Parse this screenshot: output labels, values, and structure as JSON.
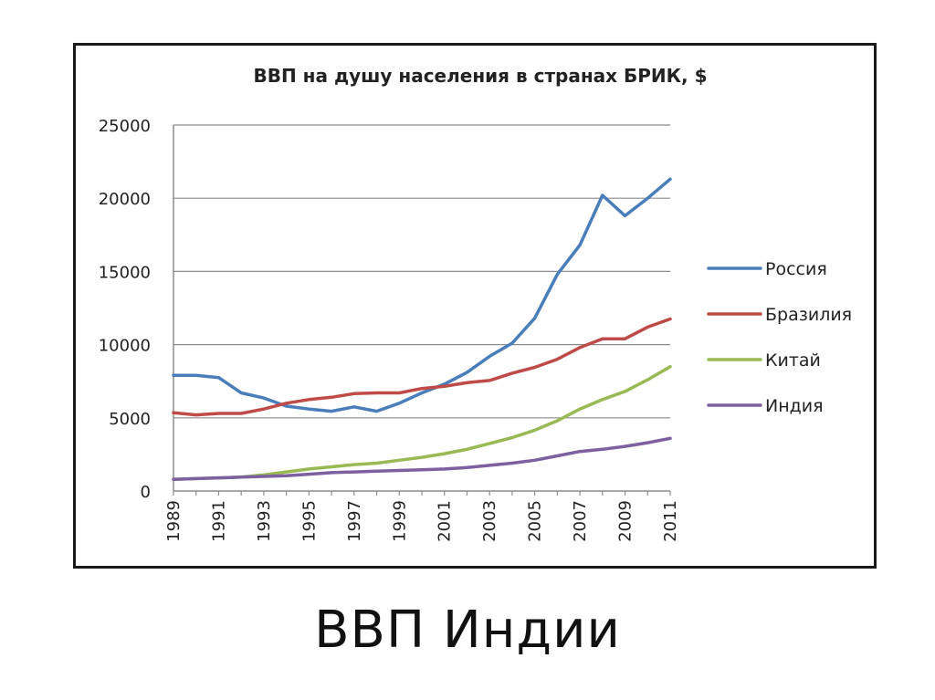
{
  "slide": {
    "caption": "ВВП Индии"
  },
  "chart_data": {
    "type": "line",
    "title": "ВВП на душу населения в странах БРИК, $",
    "xlabel": "",
    "ylabel": "",
    "ylim": [
      0,
      25000
    ],
    "yticks": [
      0,
      5000,
      10000,
      15000,
      20000,
      25000
    ],
    "grid": true,
    "legend_position": "right",
    "x": [
      1989,
      1990,
      1991,
      1992,
      1993,
      1994,
      1995,
      1996,
      1997,
      1998,
      1999,
      2000,
      2001,
      2002,
      2003,
      2004,
      2005,
      2006,
      2007,
      2008,
      2009,
      2010,
      2011
    ],
    "xtick_labels": [
      "1989",
      "1991",
      "1993",
      "1995",
      "1997",
      "1999",
      "2001",
      "2003",
      "2005",
      "2007",
      "2009",
      "2011"
    ],
    "series": [
      {
        "name": "Россия",
        "color": "#4a7ebb",
        "values": [
          7900,
          7900,
          7750,
          6700,
          6350,
          5800,
          5600,
          5450,
          5750,
          5450,
          6000,
          6700,
          7300,
          8100,
          9200,
          10100,
          11800,
          14800,
          16800,
          20200,
          18800,
          20000,
          21300
        ]
      },
      {
        "name": "Бразилия",
        "color": "#be4b48",
        "values": [
          5350,
          5200,
          5300,
          5300,
          5600,
          6000,
          6250,
          6400,
          6650,
          6700,
          6700,
          7000,
          7150,
          7400,
          7550,
          8050,
          8450,
          9000,
          9800,
          10400,
          10400,
          11200,
          11750
        ]
      },
      {
        "name": "Китай",
        "color": "#98b954",
        "values": [
          800,
          850,
          900,
          950,
          1100,
          1300,
          1500,
          1650,
          1800,
          1900,
          2100,
          2300,
          2550,
          2850,
          3250,
          3650,
          4150,
          4800,
          5600,
          6250,
          6800,
          7600,
          8500
        ]
      },
      {
        "name": "Индия",
        "color": "#7d60a0",
        "values": [
          800,
          850,
          900,
          950,
          1000,
          1050,
          1150,
          1250,
          1300,
          1350,
          1400,
          1450,
          1500,
          1600,
          1750,
          1900,
          2100,
          2400,
          2700,
          2850,
          3050,
          3300,
          3600
        ]
      }
    ]
  }
}
